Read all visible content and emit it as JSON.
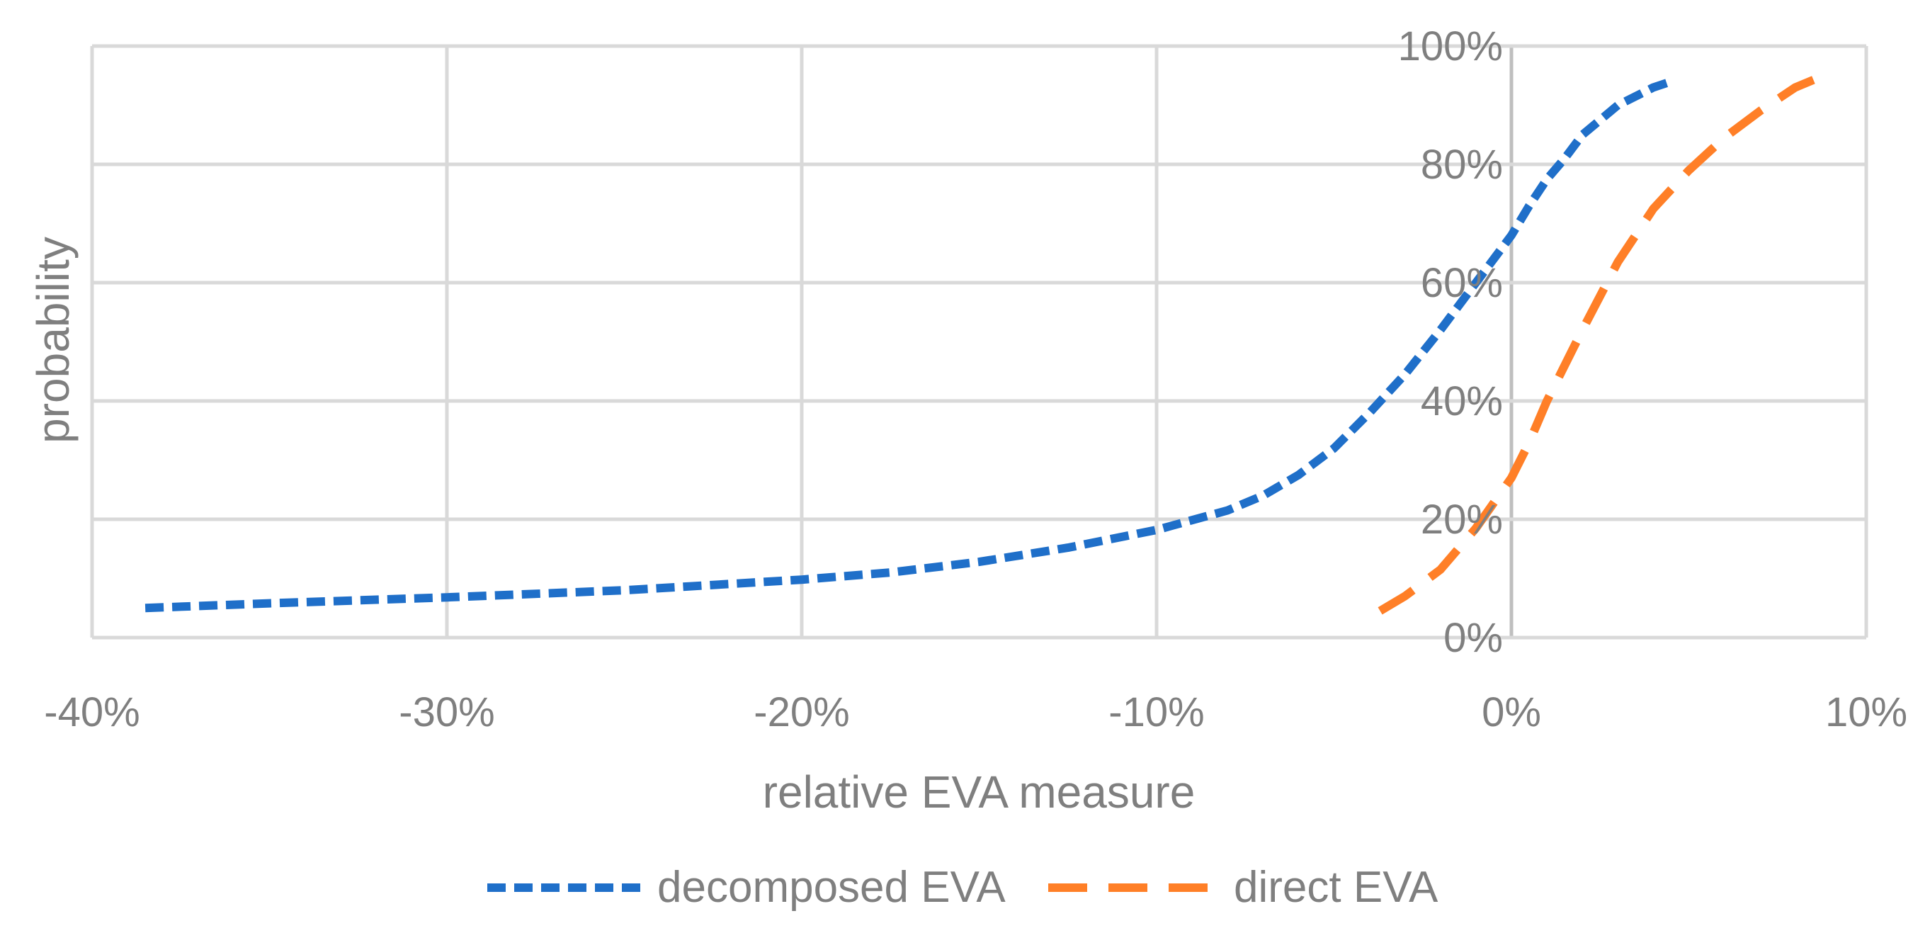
{
  "chart_data": {
    "type": "line",
    "title": "",
    "xlabel": "relative EVA measure",
    "ylabel": "probability",
    "xlim": [
      -40,
      10
    ],
    "ylim": [
      0,
      100
    ],
    "x_ticks": [
      -40,
      -30,
      -20,
      -10,
      0,
      10
    ],
    "y_ticks": [
      0,
      20,
      40,
      60,
      80,
      100
    ],
    "x_tick_labels": [
      "-40%",
      "-30%",
      "-20%",
      "-10%",
      "0%",
      "10%"
    ],
    "y_tick_labels": [
      "0%",
      "20%",
      "40%",
      "60%",
      "80%",
      "100%"
    ],
    "grid": true,
    "legend_position": "bottom",
    "series": [
      {
        "name": "decomposed EVA",
        "color": "#1f6fc9",
        "style": "short-dash",
        "x": [
          -38.5,
          -35,
          -30,
          -25,
          -20,
          -17.5,
          -15,
          -12.5,
          -10,
          -8,
          -7,
          -6,
          -5,
          -4,
          -3,
          -2,
          -1,
          0,
          0.5,
          1,
          1.5,
          2,
          3,
          4,
          4.5
        ],
        "y": [
          5,
          5.8,
          6.8,
          8,
          9.8,
          11,
          12.8,
          15.2,
          18.2,
          21.5,
          24,
          27.5,
          32,
          38,
          44.5,
          52,
          60,
          68,
          73,
          77.5,
          81,
          85,
          90,
          93,
          94
        ]
      },
      {
        "name": "direct EVA",
        "color": "#ff7f27",
        "style": "long-dash",
        "x": [
          -3.7,
          -3,
          -2,
          -1,
          0,
          0.5,
          1,
          2,
          3,
          4,
          5,
          6,
          7,
          8,
          9
        ],
        "y": [
          4.5,
          7,
          11.5,
          18.5,
          27,
          33,
          40,
          52,
          63.5,
          72.5,
          79,
          84.5,
          89,
          93,
          95.5
        ]
      }
    ]
  }
}
